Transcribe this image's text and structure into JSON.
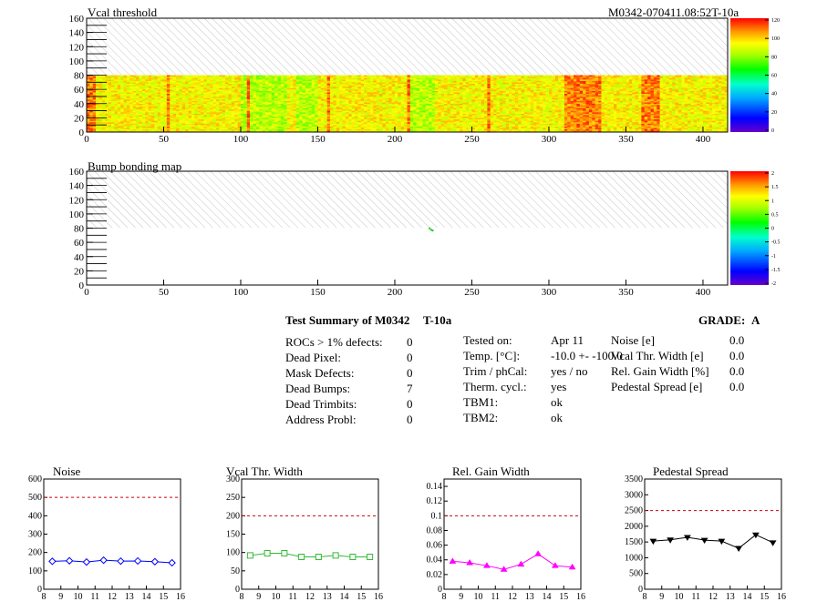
{
  "header": {
    "left_title": "Vcal threshold",
    "right_title": "M0342-070411.08:52T-10a"
  },
  "map2_title": "Bump bonding map",
  "summary": {
    "title": "Test Summary of M0342",
    "run": "T-10a",
    "grade_label": "GRADE:",
    "grade_value": "A",
    "col1": [
      {
        "label": "ROCs > 1% defects:",
        "value": "0"
      },
      {
        "label": "Dead Pixel:",
        "value": "0"
      },
      {
        "label": "Mask Defects:",
        "value": "0"
      },
      {
        "label": "Dead Bumps:",
        "value": "7"
      },
      {
        "label": "Dead Trimbits:",
        "value": "0"
      },
      {
        "label": "Address Probl:",
        "value": "0"
      }
    ],
    "col2": [
      {
        "label": "Tested on:",
        "value": "Apr 11"
      },
      {
        "label": "Temp. [°C]:",
        "value": "-10.0 +- -100.0"
      },
      {
        "label": "Trim / phCal:",
        "value": "yes / no"
      },
      {
        "label": "Therm. cycl.:",
        "value": "yes"
      },
      {
        "label": "TBM1:",
        "value": "ok"
      },
      {
        "label": "TBM2:",
        "value": "ok"
      }
    ],
    "col3": [
      {
        "label": "Noise [e]",
        "value": "0.0"
      },
      {
        "label": "Vcal Thr. Width [e]",
        "value": "0.0"
      },
      {
        "label": "Rel. Gain Width [%]",
        "value": "0.0"
      },
      {
        "label": "Pedestal Spread [e]",
        "value": "0.0"
      }
    ]
  },
  "chart_data": [
    {
      "type": "heatmap",
      "title": "Vcal threshold",
      "xlim": [
        0,
        416
      ],
      "ylim": [
        0,
        160
      ],
      "x_ticks": [
        0,
        50,
        100,
        150,
        200,
        250,
        300,
        350,
        400
      ],
      "y_ticks": [
        0,
        20,
        40,
        60,
        80,
        100,
        120,
        140,
        160
      ],
      "filled_y_range": [
        0,
        80
      ],
      "z_range": [
        0,
        130
      ],
      "colorbar_ticks": [
        0,
        20,
        40,
        60,
        80,
        100,
        120
      ],
      "hot_columns": [
        [
          310,
          334
        ],
        [
          360,
          372
        ],
        [
          0,
          5
        ]
      ],
      "cool_columns": [
        [
          100,
          130
        ],
        [
          135,
          150
        ],
        [
          210,
          225
        ]
      ]
    },
    {
      "type": "heatmap",
      "title": "Bump bonding map",
      "xlim": [
        0,
        416
      ],
      "ylim": [
        0,
        160
      ],
      "x_ticks": [
        0,
        50,
        100,
        150,
        200,
        250,
        300,
        350,
        400
      ],
      "y_ticks": [
        0,
        20,
        40,
        60,
        80,
        100,
        120,
        140,
        160
      ],
      "z_range": [
        -2,
        2
      ],
      "colorbar_ticks": [
        "-2",
        "-1.5",
        "-1",
        "-0.5",
        "0",
        "0.5",
        "1",
        "1.5",
        "2"
      ],
      "points": [
        {
          "x": 222,
          "y": 79
        },
        {
          "x": 223,
          "y": 77
        },
        {
          "x": 224,
          "y": 76
        }
      ]
    },
    {
      "type": "line",
      "title": "Noise",
      "x": [
        8.5,
        9.5,
        10.5,
        11.5,
        12.5,
        13.5,
        14.5,
        15.5
      ],
      "values": [
        152,
        155,
        148,
        158,
        153,
        154,
        150,
        144
      ],
      "xlim": [
        8,
        16
      ],
      "ylim": [
        0,
        600
      ],
      "x_ticks": [
        8,
        9,
        10,
        11,
        12,
        13,
        14,
        15,
        16
      ],
      "y_ticks": [
        0,
        100,
        200,
        300,
        400,
        500,
        600
      ],
      "ref": 500,
      "color": "#0000ff",
      "marker": "diamond"
    },
    {
      "type": "line",
      "title": "Vcal Thr. Width",
      "x": [
        8.5,
        9.5,
        10.5,
        11.5,
        12.5,
        13.5,
        14.5,
        15.5
      ],
      "values": [
        92,
        98,
        98,
        88,
        88,
        92,
        88,
        88
      ],
      "xlim": [
        8,
        16
      ],
      "ylim": [
        0,
        300
      ],
      "x_ticks": [
        8,
        9,
        10,
        11,
        12,
        13,
        14,
        15,
        16
      ],
      "y_ticks": [
        0,
        50,
        100,
        150,
        200,
        250,
        300
      ],
      "ref": 200,
      "color": "#33bb33",
      "marker": "square"
    },
    {
      "type": "line",
      "title": "Rel. Gain Width",
      "x": [
        8.5,
        9.5,
        10.5,
        11.5,
        12.5,
        13.5,
        14.5,
        15.5
      ],
      "values": [
        0.038,
        0.036,
        0.032,
        0.027,
        0.034,
        0.048,
        0.032,
        0.03
      ],
      "xlim": [
        8,
        16
      ],
      "ylim": [
        0,
        0.15
      ],
      "x_ticks": [
        8,
        9,
        10,
        11,
        12,
        13,
        14,
        15,
        16
      ],
      "y_ticks": [
        "0",
        "0.02",
        "0.04",
        "0.06",
        "0.08",
        "0.1",
        "0.12",
        "0.14"
      ],
      "ref": 0.1,
      "color": "#ff00ff",
      "marker": "triangle"
    },
    {
      "type": "line",
      "title": "Pedestal Spread",
      "x": [
        8.5,
        9.5,
        10.5,
        11.5,
        12.5,
        13.5,
        14.5,
        15.5
      ],
      "values": [
        1530,
        1570,
        1650,
        1560,
        1530,
        1300,
        1730,
        1480
      ],
      "xlim": [
        8,
        16
      ],
      "ylim": [
        0,
        3500
      ],
      "x_ticks": [
        8,
        9,
        10,
        11,
        12,
        13,
        14,
        15,
        16
      ],
      "y_ticks": [
        0,
        500,
        1000,
        1500,
        2000,
        2500,
        3000,
        3500
      ],
      "ref": 2500,
      "color": "#000000",
      "marker": "triangle-down"
    }
  ]
}
